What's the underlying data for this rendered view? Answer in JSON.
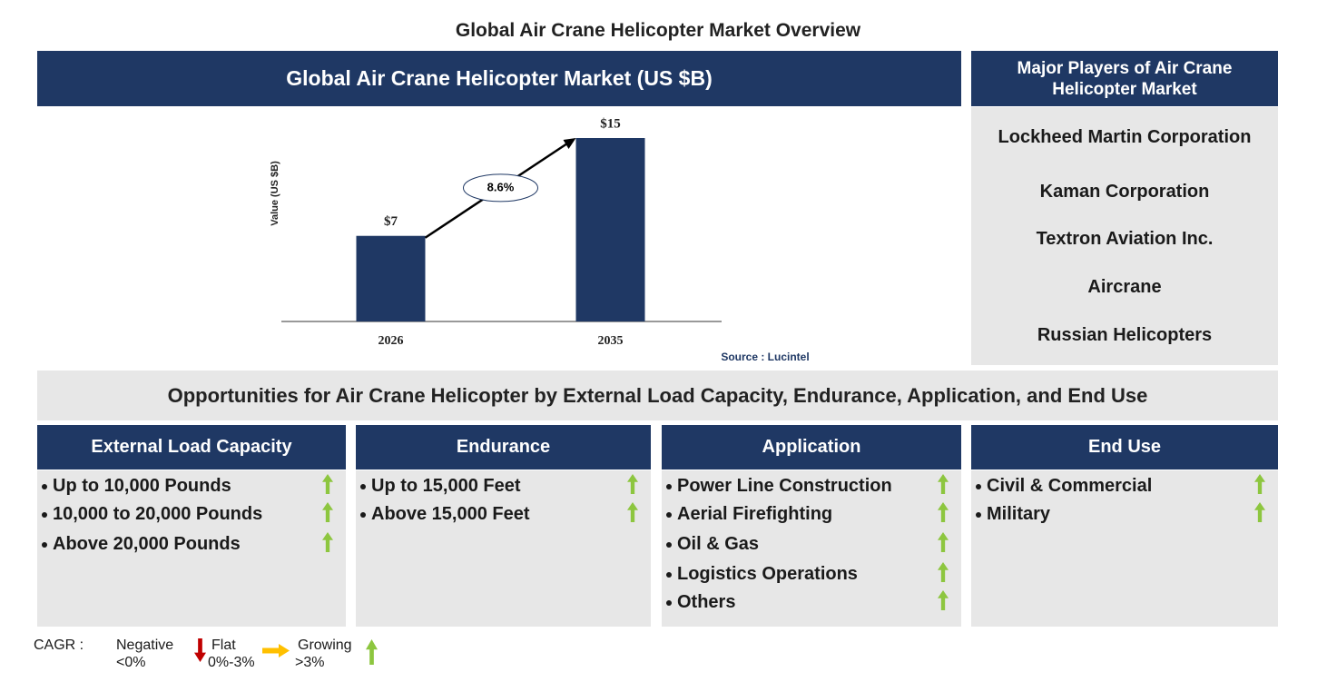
{
  "title": "Global Air Crane Helicopter Market Overview",
  "chart_data": {
    "type": "bar",
    "title": "Global Air Crane Helicopter Market (US $B)",
    "y_label": "Value (US $B)",
    "categories": [
      "2026",
      "2035"
    ],
    "values": [
      7,
      15
    ],
    "value_labels": [
      "$7",
      "$15"
    ],
    "color": "#1f3864",
    "ylim": [
      0,
      15
    ],
    "annotation": "8.6%",
    "source": "Source : Lucintel"
  },
  "players": {
    "title": "Major Players of Air Crane Helicopter Market",
    "items": [
      "Lockheed Martin Corporation",
      "Kaman Corporation",
      "Textron Aviation Inc.",
      "Aircrane",
      "Russian Helicopters"
    ]
  },
  "opportunities": {
    "title": "Opportunities for Air Crane Helicopter by External Load Capacity, Endurance, Application, and End Use",
    "segments": [
      {
        "title": "External Load Capacity",
        "items": [
          "Up to 10,000 Pounds",
          "10,000 to 20,000 Pounds",
          "Above 20,000 Pounds"
        ]
      },
      {
        "title": "Endurance",
        "items": [
          "Up to 15,000 Feet",
          "Above 15,000 Feet"
        ]
      },
      {
        "title": "Application",
        "items": [
          "Power Line Construction",
          "Aerial Firefighting",
          "Oil & Gas",
          "Logistics Operations",
          "Others"
        ]
      },
      {
        "title": "End Use",
        "items": [
          "Civil & Commercial",
          "Military"
        ]
      }
    ]
  },
  "legend": {
    "label": "CAGR :",
    "items": [
      {
        "name": "Negative",
        "range": "<0%"
      },
      {
        "name": "Flat",
        "range": "0%-3%"
      },
      {
        "name": "Growing",
        "range": ">3%"
      }
    ]
  }
}
